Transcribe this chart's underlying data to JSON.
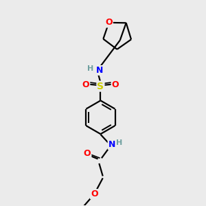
{
  "bg_color": "#ebebeb",
  "atom_colors": {
    "C": "#000000",
    "H": "#6fa0a0",
    "N": "#0000ff",
    "O": "#ff0000",
    "S": "#cccc00"
  },
  "line_color": "#000000",
  "bond_lw": 1.6,
  "figsize": [
    3.0,
    3.0
  ],
  "dpi": 100
}
